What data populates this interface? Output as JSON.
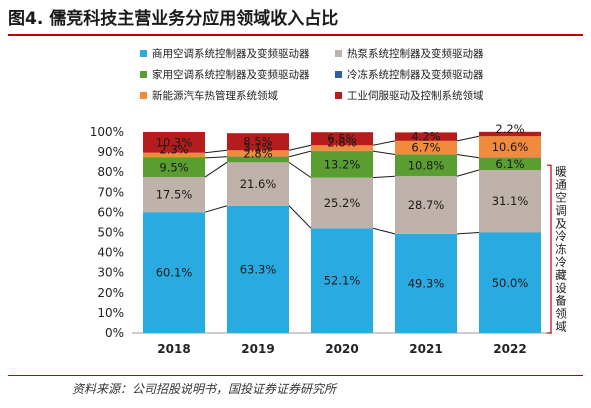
{
  "header": {
    "title": "图4. 儒竞科技主营业务分应用领域收入占比"
  },
  "footer": {
    "source": "资料来源：公司招股说明书，国投证券证券研究所"
  },
  "colors": {
    "commercial_ac": "#29abe2",
    "heat_pump": "#bfb2aa",
    "household_ac": "#5a9e32",
    "refrigeration": "#2c5f9e",
    "nev_thermal": "#f08a3c",
    "industrial_servo": "#b71c1c",
    "bracket": "#c00000"
  },
  "chart_data": {
    "type": "bar",
    "stacked": true,
    "categories": [
      "2018",
      "2019",
      "2020",
      "2021",
      "2022"
    ],
    "ylim": [
      0,
      100
    ],
    "yticks": [
      "0%",
      "10%",
      "20%",
      "30%",
      "40%",
      "50%",
      "60%",
      "70%",
      "80%",
      "90%",
      "100%"
    ],
    "series": [
      {
        "name": "商用空调系统控制器及变频驱动器",
        "values": [
          60.1,
          63.3,
          52.1,
          49.3,
          50.0
        ],
        "labels": [
          "60.1%",
          "63.3%",
          "52.1%",
          "49.3%",
          "50.0%"
        ]
      },
      {
        "name": "热泵系统控制器及变频驱动器",
        "values": [
          17.5,
          21.6,
          25.2,
          28.7,
          31.1
        ],
        "labels": [
          "17.5%",
          "21.6%",
          "25.2%",
          "28.7%",
          "31.1%"
        ]
      },
      {
        "name": "家用空调系统控制器及变频驱动器",
        "values": [
          9.5,
          2.8,
          13.2,
          10.8,
          6.1
        ],
        "labels": [
          "9.5%",
          "2.8%",
          "13.2%",
          "10.8%",
          "6.1%"
        ]
      },
      {
        "name": "冷冻系统控制器及变频驱动器",
        "values": [
          0.3,
          0.1,
          0.1,
          0.1,
          0.1
        ],
        "labels": [
          "",
          "",
          "",
          "",
          ""
        ]
      },
      {
        "name": "新能源汽车热管理系统领域",
        "values": [
          2.3,
          3.1,
          2.8,
          6.7,
          10.6
        ],
        "labels": [
          "2.3%",
          "3.1%",
          "2.8%",
          "6.7%",
          "10.6%"
        ]
      },
      {
        "name": "工业伺服驱动及控制系统领域",
        "values": [
          10.3,
          8.5,
          6.5,
          4.2,
          2.2
        ],
        "labels": [
          "10.3%",
          "8.5%",
          "6.5%",
          "4.2%",
          "2.2%"
        ]
      }
    ],
    "legend_order": [
      0,
      1,
      2,
      3,
      4,
      5
    ],
    "legend_position": "top",
    "annotation": "暖通空调及冷冻冷藏设备领域"
  }
}
